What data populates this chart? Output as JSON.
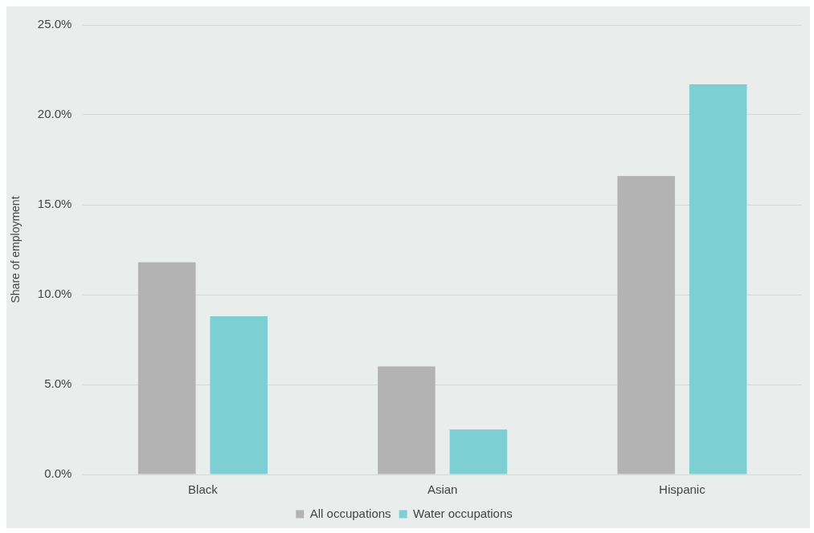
{
  "chart_data": {
    "type": "bar",
    "ylabel": "Share of employment",
    "categories": [
      "Black",
      "Asian",
      "Hispanic"
    ],
    "series": [
      {
        "name": "All occupations",
        "color": "#b3b3b3",
        "values": [
          11.8,
          6.0,
          16.6
        ]
      },
      {
        "name": "Water occupations",
        "color": "#7ccfd3",
        "values": [
          8.8,
          2.5,
          21.7
        ]
      }
    ],
    "ylim": [
      0,
      25
    ],
    "yticks": [
      {
        "value": 0,
        "label": "0.0%"
      },
      {
        "value": 5,
        "label": "5.0%"
      },
      {
        "value": 10,
        "label": "10.0%"
      },
      {
        "value": 15,
        "label": "15.0%"
      },
      {
        "value": 20,
        "label": "20.0%"
      },
      {
        "value": 25,
        "label": "25.0%"
      }
    ],
    "grid": "y",
    "legend": "bottom"
  }
}
